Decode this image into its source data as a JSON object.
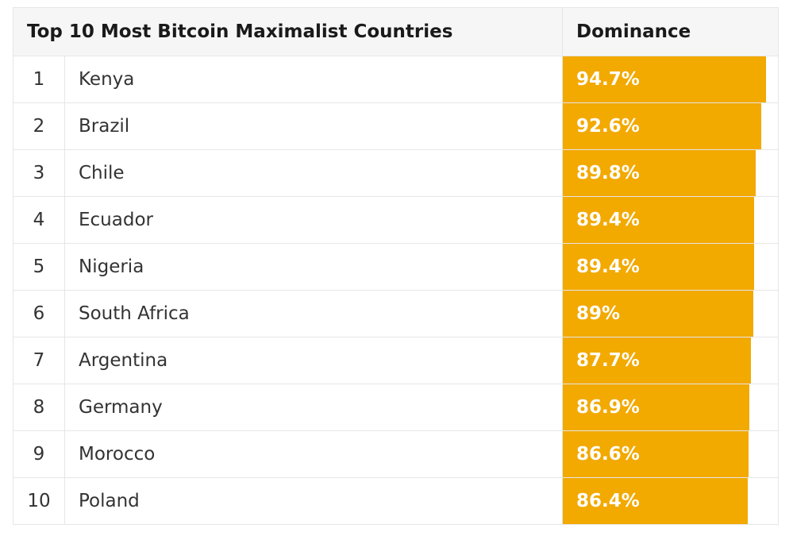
{
  "chart_data": {
    "type": "table",
    "title": "Top 10 Most Bitcoin Maximalist Countries",
    "column_header": "Dominance",
    "bar_color": "#f2a900",
    "scale_max": 100,
    "rows": [
      {
        "rank": "1",
        "country": "Kenya",
        "label": "94.7%",
        "value": 94.7
      },
      {
        "rank": "2",
        "country": "Brazil",
        "label": "92.6%",
        "value": 92.6
      },
      {
        "rank": "3",
        "country": "Chile",
        "label": "89.8%",
        "value": 89.8
      },
      {
        "rank": "4",
        "country": "Ecuador",
        "label": "89.4%",
        "value": 89.4
      },
      {
        "rank": "5",
        "country": "Nigeria",
        "label": "89.4%",
        "value": 89.4
      },
      {
        "rank": "6",
        "country": "South Africa",
        "label": "89%",
        "value": 89
      },
      {
        "rank": "7",
        "country": "Argentina",
        "label": "87.7%",
        "value": 87.7
      },
      {
        "rank": "8",
        "country": "Germany",
        "label": "86.9%",
        "value": 86.9
      },
      {
        "rank": "9",
        "country": "Morocco",
        "label": "86.6%",
        "value": 86.6
      },
      {
        "rank": "10",
        "country": "Poland",
        "label": "86.4%",
        "value": 86.4
      }
    ]
  }
}
